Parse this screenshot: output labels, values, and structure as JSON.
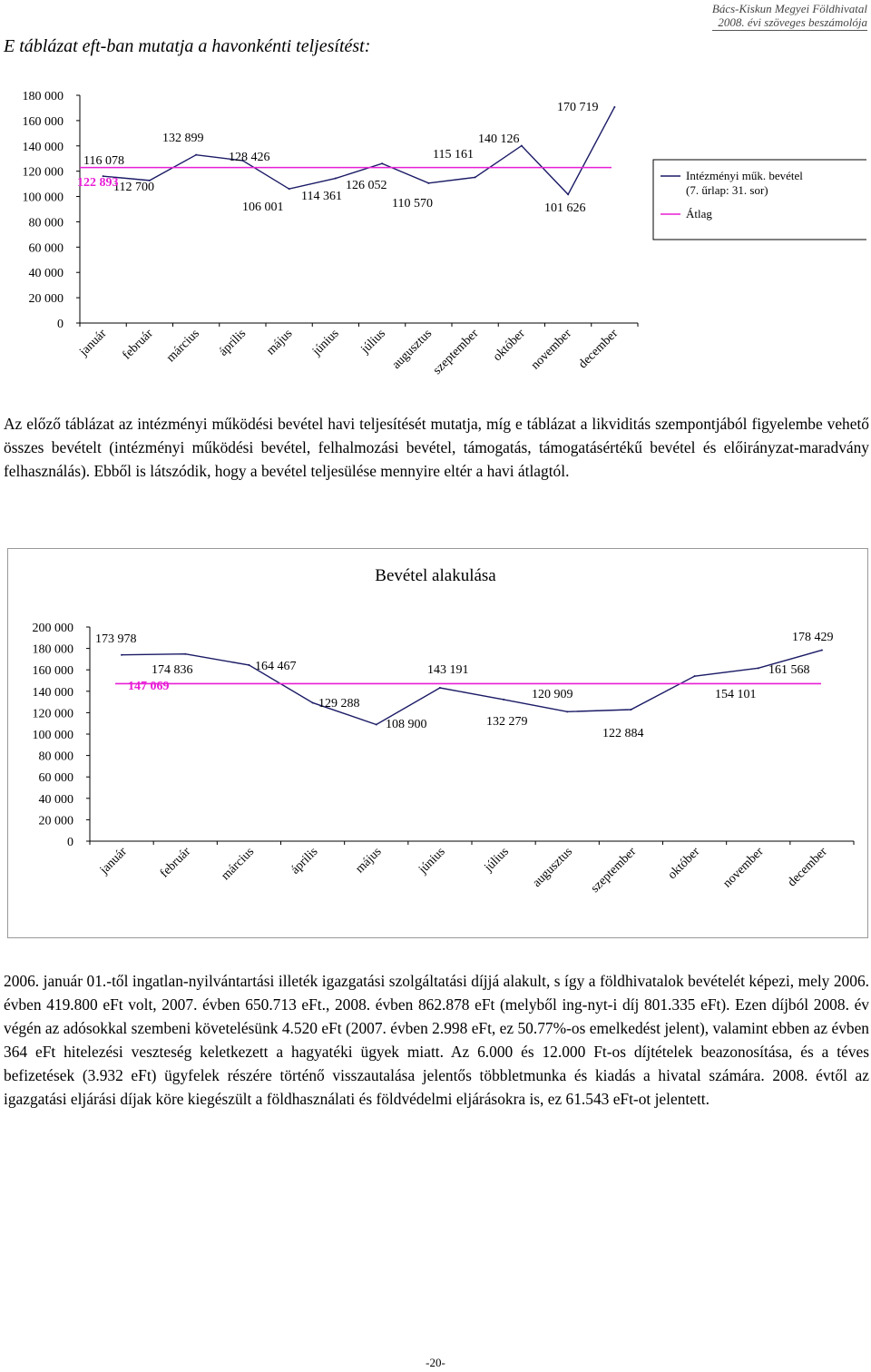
{
  "header": {
    "line1": "Bács-Kiskun Megyei Földhivatal",
    "line2": "2008. évi szöveges beszámolója"
  },
  "intro": "E táblázat eft-ban mutatja a havonkénti teljesítést:",
  "chart_data": [
    {
      "type": "line",
      "title": "",
      "categories": [
        "január",
        "február",
        "március",
        "április",
        "május",
        "június",
        "július",
        "augusztus",
        "szeptember",
        "október",
        "november",
        "december"
      ],
      "series": [
        {
          "name": "Intézményi műk. bevétel (7. űrlap: 31. sor)",
          "color": "#1a1a66",
          "values": [
            116078,
            112700,
            132899,
            128426,
            106001,
            114361,
            126052,
            110570,
            115161,
            140126,
            101626,
            170719
          ],
          "labels": [
            "116 078",
            "112 700",
            "132 899",
            "128 426",
            "106 001",
            "114 361",
            "126 052",
            "110 570",
            "115 161",
            "140 126",
            "101 626",
            "170 719"
          ]
        },
        {
          "name": "Átlag",
          "color": "#e81ed6",
          "values": [
            122893,
            122893,
            122893,
            122893,
            122893,
            122893,
            122893,
            122893,
            122893,
            122893,
            122893,
            122893
          ],
          "labels": [
            "122 893"
          ]
        }
      ],
      "yticks": [
        "0",
        "20 000",
        "40 000",
        "60 000",
        "80 000",
        "100 000",
        "120 000",
        "140 000",
        "160 000",
        "180 000"
      ],
      "ylim": [
        0,
        180000
      ],
      "grid": false,
      "legend": "right"
    },
    {
      "type": "line",
      "title": "Bevétel alakulása",
      "categories": [
        "január",
        "február",
        "március",
        "április",
        "május",
        "június",
        "július",
        "augusztus",
        "szeptember",
        "október",
        "november",
        "december"
      ],
      "series": [
        {
          "color": "#1a1a66",
          "values": [
            173978,
            174836,
            164467,
            129288,
            108900,
            143191,
            132279,
            120909,
            122884,
            154101,
            161568,
            178429
          ],
          "labels": [
            "173 978",
            "174 836",
            "164 467",
            "129 288",
            "108 900",
            "143 191",
            "132 279",
            "120 909",
            "122 884",
            "154 101",
            "161 568",
            "178 429"
          ]
        },
        {
          "color": "#e81ed6",
          "values": [
            147069,
            147069,
            147069,
            147069,
            147069,
            147069,
            147069,
            147069,
            147069,
            147069,
            147069,
            147069
          ],
          "labels": [
            "147 069"
          ]
        }
      ],
      "yticks": [
        "0",
        "20 000",
        "40 000",
        "60 000",
        "80 000",
        "100 000",
        "120 000",
        "140 000",
        "160 000",
        "180 000",
        "200 000"
      ],
      "ylim": [
        0,
        200000
      ],
      "grid": false,
      "legend": "none"
    }
  ],
  "paragraph1": "Az előző táblázat az intézményi működési bevétel havi teljesítését mutatja, míg e táblázat a likviditás szempontjából figyelembe vehető összes bevételt (intézményi működési bevétel, felhalmozási bevétel, támogatás, támogatásértékű bevétel és előirányzat-maradvány felhasználás). Ebből is látszódik, hogy a bevétel teljesülése mennyire eltér a havi átlagtól.",
  "paragraph2": "2006. január 01.-től ingatlan-nyilvántartási illeték igazgatási szolgáltatási díjjá alakult, s így a földhivatalok bevételét képezi, mely 2006. évben 419.800 eFt volt, 2007. évben 650.713 eFt., 2008. évben 862.878 eFt (melyből ing-nyt-i díj 801.335 eFt). Ezen díjból 2008. év végén az adósokkal szembeni követelésünk 4.520 eFt (2007. évben 2.998 eFt, ez 50.77%-os emelkedést jelent), valamint ebben az évben 364 eFt hitelezési veszteség keletkezett a hagyatéki ügyek miatt. Az 6.000 és 12.000 Ft-os díjtételek beazonosítása, és a téves befizetések (3.932 eFt) ügyfelek részére történő visszautalása jelentős többletmunka és kiadás a hivatal számára. 2008. évtől az igazgatási eljárási díjak köre kiegészült a földhasználati és földvédelmi eljárásokra is, ez 61.543 eFt-ot jelentett.",
  "footer": "-20-"
}
